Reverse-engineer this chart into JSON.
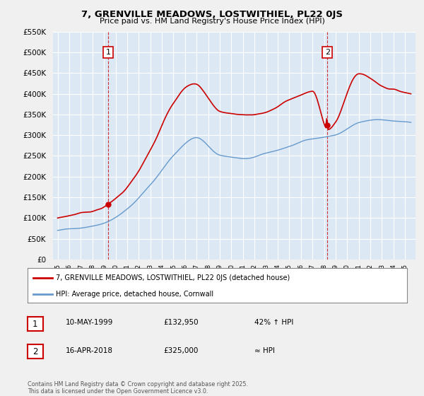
{
  "title": "7, GRENVILLE MEADOWS, LOSTWITHIEL, PL22 0JS",
  "subtitle": "Price paid vs. HM Land Registry's House Price Index (HPI)",
  "red_label": "7, GRENVILLE MEADOWS, LOSTWITHIEL, PL22 0JS (detached house)",
  "blue_label": "HPI: Average price, detached house, Cornwall",
  "point1_date": "10-MAY-1999",
  "point1_price": 132950,
  "point1_note": "42% ↑ HPI",
  "point2_date": "16-APR-2018",
  "point2_price": 325000,
  "point2_note": "≈ HPI",
  "footnote": "Contains HM Land Registry data © Crown copyright and database right 2025.\nThis data is licensed under the Open Government Licence v3.0.",
  "ylim": [
    0,
    550000
  ],
  "yticks": [
    0,
    50000,
    100000,
    150000,
    200000,
    250000,
    300000,
    350000,
    400000,
    450000,
    500000,
    550000
  ],
  "vline1_x": 1999.36,
  "vline2_x": 2018.29,
  "bg_color": "#f0f0f0",
  "plot_bg_color": "#dce9f5",
  "grid_color": "#ffffff",
  "red_color": "#cc0000",
  "blue_color": "#6699cc",
  "xmin": 1995,
  "xmax": 2025
}
